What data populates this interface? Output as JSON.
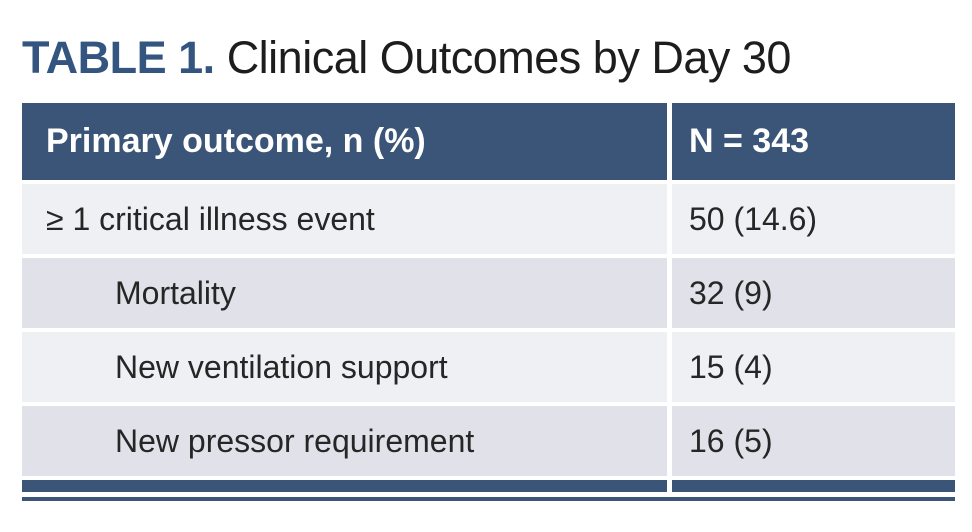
{
  "title": {
    "label": "TABLE 1.",
    "text": "Clinical Outcomes by Day 30"
  },
  "colors": {
    "header_bg": "#3a5577",
    "title_accent": "#33557f",
    "row_light": "#eff0f4",
    "row_dark": "#e1e1e9",
    "body_text": "#262626",
    "header_text": "#ffffff",
    "bottom_bar": "#3a5577"
  },
  "table": {
    "header": {
      "col1": "Primary outcome, n (%)",
      "col2": "N = 343"
    },
    "rows": [
      {
        "label": "≥ 1 critical illness event",
        "value": "50 (14.6)",
        "indent": false
      },
      {
        "label": "Mortality",
        "value": "32 (9)",
        "indent": true
      },
      {
        "label": "New ventilation support",
        "value": "15 (4)",
        "indent": true
      },
      {
        "label": "New pressor requirement",
        "value": "16 (5)",
        "indent": true
      }
    ]
  },
  "chart_data": {
    "type": "table",
    "title": "TABLE 1. Clinical Outcomes by Day 30",
    "columns": [
      "Primary outcome, n (%)",
      "N = 343"
    ],
    "rows": [
      [
        "≥ 1 critical illness event",
        "50 (14.6)"
      ],
      [
        "Mortality",
        "32 (9)"
      ],
      [
        "New ventilation support",
        "15 (4)"
      ],
      [
        "New pressor requirement",
        "16 (5)"
      ]
    ]
  }
}
